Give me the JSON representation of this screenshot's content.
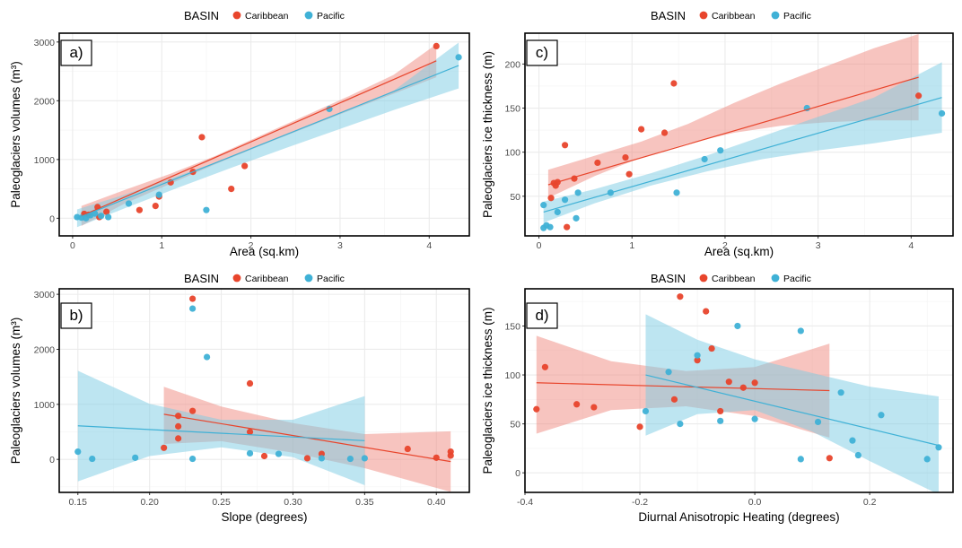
{
  "colors": {
    "caribbean": "#e8452c",
    "pacific": "#3fb1d6",
    "caribbean_band": "#f08a80",
    "pacific_band": "#7ccbe4",
    "grid": "#ebebeb",
    "text": "#333333"
  },
  "chart_data": [
    {
      "type": "scatter",
      "panel_label": "a)",
      "legend_title": "BASIN",
      "legend": [
        "Caribbean",
        "Pacific"
      ],
      "legend_placement": "top",
      "xlabel": "Area (sq.km)",
      "ylabel": "Paleoglaciers volumes (m³)",
      "xlim": [
        -0.15,
        4.45
      ],
      "ylim": [
        -300,
        3150
      ],
      "xticks": [
        0,
        1,
        2,
        3,
        4
      ],
      "xtick_labels": [
        "0",
        "1",
        "2",
        "3",
        "4"
      ],
      "yticks": [
        0,
        1000,
        2000,
        3000
      ],
      "ytick_labels": [
        "0",
        "1000",
        "2000",
        "3000"
      ],
      "grid": true,
      "series": [
        {
          "name": "Caribbean",
          "color_key": "caribbean",
          "x": [
            0.13,
            0.18,
            0.28,
            0.3,
            0.38,
            0.75,
            0.93,
            0.97,
            1.1,
            1.35,
            1.45,
            1.78,
            1.93,
            4.08
          ],
          "y": [
            75,
            60,
            190,
            20,
            110,
            140,
            210,
            370,
            610,
            790,
            1380,
            500,
            890,
            2930
          ],
          "fit": {
            "x": [
              0.1,
              4.08
            ],
            "y": [
              40,
              2680
            ]
          },
          "band": {
            "x": [
              0.1,
              0.6,
              1.1,
              1.6,
              2.1,
              2.6,
              3.1,
              3.6,
              4.08
            ],
            "lower": [
              -130,
              260,
              590,
              920,
              1230,
              1530,
              1830,
              2120,
              2400
            ],
            "upper": [
              210,
              490,
              760,
              1060,
              1400,
              1740,
              2080,
              2440,
              2960
            ]
          }
        },
        {
          "name": "Pacific",
          "color_key": "pacific",
          "x": [
            0.05,
            0.1,
            0.15,
            0.2,
            0.25,
            0.32,
            0.4,
            0.63,
            0.97,
            1.5,
            2.88,
            4.33
          ],
          "y": [
            20,
            10,
            0,
            50,
            80,
            40,
            20,
            250,
            400,
            140,
            1860,
            2740
          ],
          "fit": {
            "x": [
              0.05,
              4.33
            ],
            "y": [
              0,
              2600
            ]
          },
          "band": {
            "x": [
              0.05,
              0.6,
              1.2,
              1.8,
              2.4,
              3.0,
              3.6,
              4.33
            ],
            "lower": [
              -150,
              180,
              530,
              870,
              1200,
              1520,
              1840,
              2210
            ],
            "upper": [
              150,
              410,
              730,
              1060,
              1420,
              1790,
              2170,
              2990
            ]
          }
        }
      ]
    },
    {
      "type": "scatter",
      "panel_label": "b)",
      "legend_title": "BASIN",
      "legend": [
        "Caribbean",
        "Pacific"
      ],
      "legend_placement": "top",
      "xlabel": "Slope (degrees)",
      "ylabel": "Paleoglaciers volumes (m³)",
      "xlim": [
        0.137,
        0.423
      ],
      "ylim": [
        -600,
        3100
      ],
      "xticks": [
        0.15,
        0.2,
        0.25,
        0.3,
        0.35,
        0.4
      ],
      "xtick_labels": [
        "0.15",
        "0.20",
        "0.25",
        "0.30",
        "0.35",
        "0.40"
      ],
      "yticks": [
        0,
        1000,
        2000,
        3000
      ],
      "ytick_labels": [
        "0",
        "1000",
        "2000",
        "3000"
      ],
      "grid": true,
      "series": [
        {
          "name": "Caribbean",
          "color_key": "caribbean",
          "x": [
            0.21,
            0.22,
            0.22,
            0.22,
            0.23,
            0.23,
            0.27,
            0.27,
            0.28,
            0.31,
            0.32,
            0.38,
            0.4,
            0.41,
            0.41
          ],
          "y": [
            210,
            790,
            600,
            380,
            2920,
            880,
            500,
            1380,
            60,
            20,
            100,
            190,
            30,
            140,
            70
          ],
          "fit": {
            "x": [
              0.21,
              0.41
            ],
            "y": [
              820,
              -40
            ]
          },
          "band": {
            "x": [
              0.21,
              0.25,
              0.3,
              0.35,
              0.41
            ],
            "lower": [
              280,
              330,
              120,
              -160,
              -590
            ],
            "upper": [
              1320,
              960,
              660,
              460,
              510
            ]
          }
        },
        {
          "name": "Pacific",
          "color_key": "pacific",
          "x": [
            0.15,
            0.16,
            0.19,
            0.23,
            0.23,
            0.24,
            0.27,
            0.29,
            0.32,
            0.34,
            0.35
          ],
          "y": [
            140,
            10,
            30,
            10,
            2740,
            1860,
            110,
            100,
            20,
            10,
            20
          ],
          "fit": {
            "x": [
              0.15,
              0.35
            ],
            "y": [
              610,
              340
            ]
          },
          "band": {
            "x": [
              0.15,
              0.2,
              0.25,
              0.3,
              0.35
            ],
            "lower": [
              -400,
              60,
              220,
              40,
              -470
            ],
            "upper": [
              1610,
              1010,
              720,
              720,
              1150
            ]
          }
        }
      ]
    },
    {
      "type": "scatter",
      "panel_label": "c)",
      "legend_title": "BASIN",
      "legend": [
        "Caribbean",
        "Pacific"
      ],
      "legend_placement": "top",
      "xlabel": "Area (sq.km)",
      "ylabel": "Paleoglaciers ice thickness (m)",
      "xlim": [
        -0.15,
        4.45
      ],
      "ylim": [
        5,
        235
      ],
      "xticks": [
        0,
        1,
        2,
        3,
        4
      ],
      "xtick_labels": [
        "0",
        "1",
        "2",
        "3",
        "4"
      ],
      "yticks": [
        50,
        100,
        150,
        200
      ],
      "ytick_labels": [
        "50",
        "100",
        "150",
        "200"
      ],
      "grid": true,
      "series": [
        {
          "name": "Caribbean",
          "color_key": "caribbean",
          "x": [
            0.13,
            0.16,
            0.18,
            0.2,
            0.28,
            0.3,
            0.38,
            0.63,
            0.93,
            0.97,
            1.1,
            1.35,
            1.45,
            4.08
          ],
          "y": [
            48,
            65,
            62,
            66,
            108,
            15,
            70,
            88,
            94,
            75,
            126,
            122,
            178,
            164
          ],
          "fit": {
            "x": [
              0.1,
              4.08
            ],
            "y": [
              63,
              185
            ]
          },
          "band": {
            "x": [
              0.1,
              0.6,
              1.1,
              1.6,
              2.1,
              2.6,
              3.1,
              3.6,
              4.08
            ],
            "lower": [
              48,
              73,
              94,
              110,
              122,
              130,
              134,
              136,
              136
            ],
            "upper": [
              80,
              96,
              112,
              132,
              156,
              178,
              198,
              218,
              234
            ]
          }
        },
        {
          "name": "Pacific",
          "color_key": "pacific",
          "x": [
            0.05,
            0.05,
            0.08,
            0.12,
            0.2,
            0.28,
            0.4,
            0.42,
            0.77,
            1.48,
            1.78,
            1.95,
            2.88,
            4.33
          ],
          "y": [
            40,
            14,
            17,
            15,
            32,
            46,
            25,
            54,
            54,
            54,
            92,
            102,
            150,
            144
          ],
          "fit": {
            "x": [
              0.05,
              4.33
            ],
            "y": [
              32,
              162
            ]
          },
          "band": {
            "x": [
              0.05,
              0.6,
              1.2,
              1.8,
              2.4,
              3.0,
              3.6,
              4.33
            ],
            "lower": [
              20,
              42,
              62,
              78,
              92,
              102,
              110,
              122
            ],
            "upper": [
              44,
              58,
              76,
              96,
              118,
              140,
              162,
              202
            ]
          }
        }
      ]
    },
    {
      "type": "scatter",
      "panel_label": "d)",
      "legend_title": "BASIN",
      "legend": [
        "Caribbean",
        "Pacific"
      ],
      "legend_placement": "top",
      "xlabel": "Diurnal Anisotropic Heating (degrees)",
      "ylabel": "Paleoglaciers ice thickness (m)",
      "xlim": [
        -0.4,
        0.345
      ],
      "ylim": [
        -20,
        188
      ],
      "xticks": [
        -0.4,
        -0.2,
        0.0,
        0.2
      ],
      "xtick_labels": [
        "-0.4",
        "-0.2",
        "0.0",
        "0.2"
      ],
      "yticks": [
        0,
        50,
        100,
        150
      ],
      "ytick_labels": [
        "0",
        "50",
        "100",
        "150"
      ],
      "grid": true,
      "series": [
        {
          "name": "Caribbean",
          "color_key": "caribbean",
          "x": [
            -0.38,
            -0.365,
            -0.31,
            -0.28,
            -0.2,
            -0.14,
            -0.13,
            -0.1,
            -0.085,
            -0.075,
            -0.06,
            -0.045,
            -0.02,
            0.0,
            0.13
          ],
          "y": [
            65,
            108,
            70,
            67,
            47,
            75,
            180,
            115,
            165,
            127,
            63,
            93,
            87,
            92,
            15
          ],
          "fit": {
            "x": [
              -0.38,
              0.13
            ],
            "y": [
              92,
              84
            ]
          },
          "band": {
            "x": [
              -0.38,
              -0.25,
              -0.12,
              0.0,
              0.13
            ],
            "lower": [
              40,
              64,
              68,
              58,
              36
            ],
            "upper": [
              140,
              114,
              104,
              108,
              132
            ]
          }
        },
        {
          "name": "Pacific",
          "color_key": "pacific",
          "x": [
            -0.19,
            -0.15,
            -0.13,
            -0.1,
            -0.06,
            -0.03,
            0.0,
            0.08,
            0.08,
            0.11,
            0.15,
            0.17,
            0.18,
            0.22,
            0.3,
            0.32
          ],
          "y": [
            63,
            103,
            50,
            120,
            53,
            150,
            55,
            145,
            14,
            52,
            82,
            33,
            18,
            59,
            14,
            26
          ],
          "fit": {
            "x": [
              -0.19,
              0.32
            ],
            "y": [
              100,
              28
            ]
          },
          "band": {
            "x": [
              -0.19,
              -0.1,
              0.0,
              0.1,
              0.2,
              0.32
            ],
            "lower": [
              38,
              60,
              64,
              42,
              12,
              -22
            ],
            "upper": [
              162,
              136,
              116,
              102,
              88,
              78
            ]
          }
        }
      ]
    }
  ]
}
